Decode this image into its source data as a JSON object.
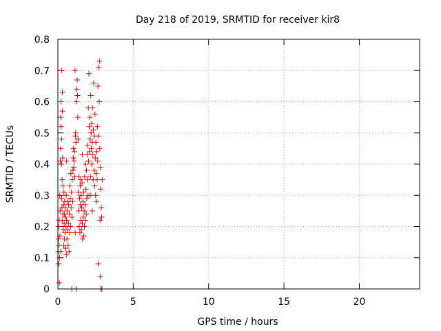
{
  "chart_data": {
    "type": "scatter",
    "title": "Day 218 of 2019, SRMTID for receiver kir8",
    "xlabel": "GPS time / hours",
    "ylabel": "SRMTID / TECUs",
    "xlim": [
      0,
      24
    ],
    "ylim": [
      0,
      0.8
    ],
    "xticks": [
      0,
      5,
      10,
      15,
      20
    ],
    "xtick_labels": [
      "0",
      "5",
      "10",
      "15",
      "20"
    ],
    "yticks": [
      0,
      0.1,
      0.2,
      0.3,
      0.4,
      0.5,
      0.6,
      0.7,
      0.8
    ],
    "ytick_labels": [
      "0",
      "0.1",
      "0.2",
      "0.3",
      "0.4",
      "0.5",
      "0.6",
      "0.7",
      "0.8"
    ],
    "grid": true,
    "marker": "+",
    "series": [
      {
        "name": "SRMTID",
        "color": "#e00000",
        "points": [
          [
            0.02,
            0.12
          ],
          [
            0.03,
            0.16
          ],
          [
            0.05,
            0.08
          ],
          [
            0.06,
            0.2
          ],
          [
            0.08,
            0.14
          ],
          [
            0.09,
            0.22
          ],
          [
            0.1,
            0.02
          ],
          [
            0.11,
            0.1
          ],
          [
            0.12,
            0.3
          ],
          [
            0.13,
            0.17
          ],
          [
            0.15,
            0.25
          ],
          [
            0.16,
            0.41
          ],
          [
            0.18,
            0.45
          ],
          [
            0.19,
            0.12
          ],
          [
            0.2,
            0.55
          ],
          [
            0.21,
            0.6
          ],
          [
            0.22,
            0.52
          ],
          [
            0.24,
            0.48
          ],
          [
            0.25,
            0.29
          ],
          [
            0.26,
            0.7
          ],
          [
            0.27,
            0.26
          ],
          [
            0.28,
            0.35
          ],
          [
            0.29,
            0.22
          ],
          [
            0.3,
            0.63
          ],
          [
            0.31,
            0.57
          ],
          [
            0.32,
            0.42
          ],
          [
            0.34,
            0.33
          ],
          [
            0.35,
            0.24
          ],
          [
            0.36,
            0.19
          ],
          [
            0.38,
            0.27
          ],
          [
            0.39,
            0.14
          ],
          [
            0.4,
            0.31
          ],
          [
            0.42,
            0.21
          ],
          [
            0.43,
            0.16
          ],
          [
            0.44,
            0.24
          ],
          [
            0.45,
            0.28
          ],
          [
            0.47,
            0.18
          ],
          [
            0.48,
            0.23
          ],
          [
            0.5,
            0.26
          ],
          [
            0.52,
            0.13
          ],
          [
            0.54,
            0.2
          ],
          [
            0.55,
            0.3
          ],
          [
            0.56,
            0.11
          ],
          [
            0.58,
            0.22
          ],
          [
            0.6,
            0.16
          ],
          [
            0.62,
            0.25
          ],
          [
            0.64,
            0.19
          ],
          [
            0.66,
            0.28
          ],
          [
            0.68,
            0.14
          ],
          [
            0.7,
            0.21
          ],
          [
            0.72,
            0.27
          ],
          [
            0.74,
            0.12
          ],
          [
            0.76,
            0.24
          ],
          [
            0.78,
            0.18
          ],
          [
            0.8,
            0.33
          ],
          [
            0.82,
            0.29
          ],
          [
            0.84,
            0.2
          ],
          [
            0.86,
            0.37
          ],
          [
            0.88,
            0.26
          ],
          [
            0.9,
            0.31
          ],
          [
            0.92,
            0.0
          ],
          [
            0.94,
            0.23
          ],
          [
            0.96,
            0.35
          ],
          [
            0.98,
            0.28
          ],
          [
            1.0,
            0.38
          ],
          [
            1.02,
            0.42
          ],
          [
            1.04,
            0.45
          ],
          [
            1.06,
            0.39
          ],
          [
            1.08,
            0.41
          ],
          [
            1.1,
            0.44
          ],
          [
            1.12,
            0.36
          ],
          [
            1.14,
            0.7
          ],
          [
            1.16,
            0.49
          ],
          [
            1.18,
            0.5
          ],
          [
            1.2,
            0.47
          ],
          [
            1.22,
            0.0
          ],
          [
            1.24,
            0.6
          ],
          [
            1.26,
            0.64
          ],
          [
            1.28,
            0.67
          ],
          [
            1.3,
            0.62
          ],
          [
            1.32,
            0.55
          ],
          [
            1.34,
            0.48
          ],
          [
            1.36,
            0.31
          ],
          [
            1.38,
            0.25
          ],
          [
            1.4,
            0.36
          ],
          [
            1.42,
            0.2
          ],
          [
            1.44,
            0.29
          ],
          [
            1.46,
            0.18
          ],
          [
            1.48,
            0.33
          ],
          [
            1.5,
            0.27
          ],
          [
            1.52,
            0.22
          ],
          [
            1.54,
            0.3
          ],
          [
            1.56,
            0.19
          ],
          [
            1.58,
            0.26
          ],
          [
            1.6,
            0.34
          ],
          [
            1.62,
            0.21
          ],
          [
            1.64,
            0.16
          ],
          [
            1.66,
            0.28
          ],
          [
            1.68,
            0.23
          ],
          [
            1.7,
            0.31
          ],
          [
            1.72,
            0.17
          ],
          [
            1.74,
            0.25
          ],
          [
            1.76,
            0.2
          ],
          [
            1.78,
            0.36
          ],
          [
            1.8,
            0.27
          ],
          [
            1.82,
            0.22
          ],
          [
            1.84,
            0.4
          ],
          [
            1.86,
            0.32
          ],
          [
            1.88,
            0.24
          ],
          [
            1.9,
            0.38
          ],
          [
            1.92,
            0.29
          ],
          [
            1.94,
            0.43
          ],
          [
            1.96,
            0.35
          ],
          [
            1.98,
            0.46
          ],
          [
            2.0,
            0.3
          ],
          [
            2.02,
            0.58
          ],
          [
            2.04,
            0.41
          ],
          [
            2.06,
            0.69
          ],
          [
            2.08,
            0.52
          ],
          [
            2.1,
            0.44
          ],
          [
            2.12,
            0.55
          ],
          [
            2.14,
            0.48
          ],
          [
            2.16,
            0.36
          ],
          [
            2.18,
            0.62
          ],
          [
            2.2,
            0.5
          ],
          [
            2.22,
            0.45
          ],
          [
            2.24,
            0.53
          ],
          [
            2.26,
            0.4
          ],
          [
            2.28,
            0.47
          ],
          [
            2.3,
            0.58
          ],
          [
            2.32,
            0.43
          ],
          [
            2.34,
            0.35
          ],
          [
            2.36,
            0.51
          ],
          [
            2.38,
            0.66
          ],
          [
            2.4,
            0.38
          ],
          [
            2.42,
            0.49
          ],
          [
            2.44,
            0.33
          ],
          [
            2.46,
            0.56
          ],
          [
            2.48,
            0.42
          ],
          [
            2.5,
            0.3
          ],
          [
            2.52,
            0.47
          ],
          [
            2.54,
            0.37
          ],
          [
            2.56,
            0.28
          ],
          [
            2.58,
            0.44
          ],
          [
            2.6,
            0.35
          ],
          [
            2.62,
            0.52
          ],
          [
            2.64,
            0.41
          ],
          [
            2.66,
            0.65
          ],
          [
            2.68,
            0.08
          ],
          [
            2.7,
            0.49
          ],
          [
            2.72,
            0.71
          ],
          [
            2.74,
            0.6
          ],
          [
            2.76,
            0.73
          ],
          [
            2.78,
            0.45
          ],
          [
            2.8,
            0.22
          ],
          [
            2.82,
            0.04
          ],
          [
            2.84,
            0.32
          ],
          [
            2.86,
            0.0
          ],
          [
            2.88,
            0.26
          ],
          [
            2.9,
            0.23
          ],
          [
            2.92,
            0.0
          ],
          [
            2.94,
            0.35
          ],
          [
            0.58,
            0.41
          ],
          [
            1.62,
            0.43
          ],
          [
            2.15,
            0.3
          ],
          [
            0.25,
            0.4
          ],
          [
            1.15,
            0.18
          ],
          [
            1.52,
            0.35
          ],
          [
            2.28,
            0.25
          ],
          [
            2.82,
            0.39
          ]
        ]
      }
    ]
  }
}
